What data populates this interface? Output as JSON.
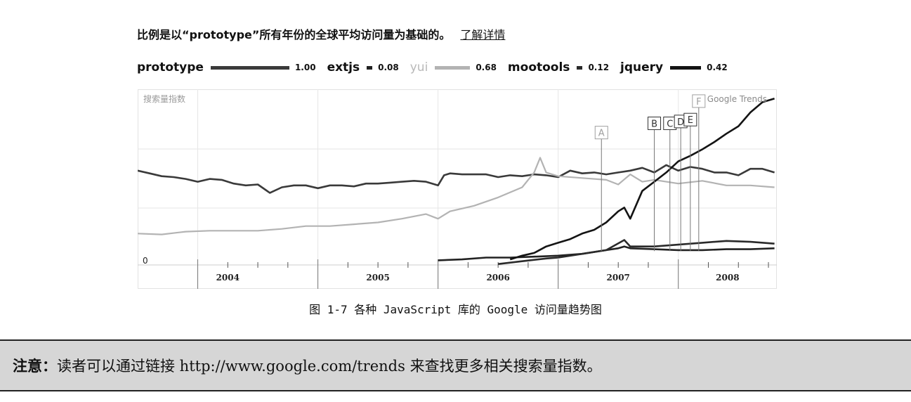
{
  "scale_note": {
    "text": "比例是以“prototype”所有年份的全球平均访问量为基础的。",
    "link": "了解详情"
  },
  "chart_data": {
    "type": "line",
    "y_label": "搜索量指数",
    "watermark": "Google Trends",
    "zero_label": "0",
    "x_range": [
      2003.5,
      2008.82
    ],
    "y_range": [
      0,
      1.9
    ],
    "years": [
      "2004",
      "2005",
      "2006",
      "2007",
      "2008"
    ],
    "series": [
      {
        "name": "prototype",
        "legend_value": "1.00",
        "color": "#3a3a3a",
        "faded": false,
        "points": [
          [
            2003.5,
            1.02
          ],
          [
            2003.6,
            0.99
          ],
          [
            2003.7,
            0.96
          ],
          [
            2003.8,
            0.95
          ],
          [
            2003.9,
            0.93
          ],
          [
            2004.0,
            0.9
          ],
          [
            2004.1,
            0.93
          ],
          [
            2004.2,
            0.92
          ],
          [
            2004.3,
            0.88
          ],
          [
            2004.4,
            0.86
          ],
          [
            2004.5,
            0.87
          ],
          [
            2004.6,
            0.78
          ],
          [
            2004.7,
            0.84
          ],
          [
            2004.8,
            0.86
          ],
          [
            2004.9,
            0.86
          ],
          [
            2005.0,
            0.83
          ],
          [
            2005.1,
            0.86
          ],
          [
            2005.2,
            0.86
          ],
          [
            2005.3,
            0.85
          ],
          [
            2005.4,
            0.88
          ],
          [
            2005.5,
            0.88
          ],
          [
            2005.6,
            0.89
          ],
          [
            2005.7,
            0.9
          ],
          [
            2005.8,
            0.91
          ],
          [
            2005.9,
            0.9
          ],
          [
            2006.0,
            0.86
          ],
          [
            2006.05,
            0.97
          ],
          [
            2006.1,
            0.99
          ],
          [
            2006.2,
            0.98
          ],
          [
            2006.3,
            0.98
          ],
          [
            2006.4,
            0.98
          ],
          [
            2006.5,
            0.95
          ],
          [
            2006.6,
            0.97
          ],
          [
            2006.7,
            0.96
          ],
          [
            2006.8,
            0.98
          ],
          [
            2006.9,
            0.97
          ],
          [
            2007.0,
            0.95
          ],
          [
            2007.1,
            1.02
          ],
          [
            2007.2,
            0.99
          ],
          [
            2007.3,
            1.0
          ],
          [
            2007.4,
            0.98
          ],
          [
            2007.5,
            1.0
          ],
          [
            2007.6,
            1.02
          ],
          [
            2007.7,
            1.05
          ],
          [
            2007.8,
            1.0
          ],
          [
            2007.9,
            1.08
          ],
          [
            2008.0,
            1.02
          ],
          [
            2008.1,
            1.06
          ],
          [
            2008.2,
            1.04
          ],
          [
            2008.3,
            1.0
          ],
          [
            2008.4,
            1.0
          ],
          [
            2008.5,
            0.97
          ],
          [
            2008.6,
            1.04
          ],
          [
            2008.7,
            1.04
          ],
          [
            2008.8,
            1.0
          ]
        ]
      },
      {
        "name": "extjs",
        "legend_value": "0.08",
        "color": "#222222",
        "faded": false,
        "points": [
          [
            2006.0,
            0.05
          ],
          [
            2006.2,
            0.06
          ],
          [
            2006.4,
            0.08
          ],
          [
            2006.6,
            0.08
          ],
          [
            2006.8,
            0.09
          ],
          [
            2007.0,
            0.1
          ],
          [
            2007.2,
            0.12
          ],
          [
            2007.4,
            0.16
          ],
          [
            2007.5,
            0.18
          ],
          [
            2007.55,
            0.2
          ],
          [
            2007.6,
            0.18
          ],
          [
            2007.8,
            0.17
          ],
          [
            2008.0,
            0.16
          ],
          [
            2008.2,
            0.16
          ],
          [
            2008.4,
            0.17
          ],
          [
            2008.6,
            0.17
          ],
          [
            2008.8,
            0.18
          ]
        ]
      },
      {
        "name": "yui",
        "legend_value": "0.68",
        "color": "#b3b3b3",
        "faded": true,
        "points": [
          [
            2003.5,
            0.34
          ],
          [
            2003.7,
            0.33
          ],
          [
            2003.9,
            0.36
          ],
          [
            2004.1,
            0.37
          ],
          [
            2004.3,
            0.37
          ],
          [
            2004.5,
            0.37
          ],
          [
            2004.7,
            0.39
          ],
          [
            2004.9,
            0.42
          ],
          [
            2005.1,
            0.42
          ],
          [
            2005.3,
            0.44
          ],
          [
            2005.5,
            0.46
          ],
          [
            2005.7,
            0.5
          ],
          [
            2005.9,
            0.55
          ],
          [
            2006.0,
            0.5
          ],
          [
            2006.1,
            0.58
          ],
          [
            2006.3,
            0.64
          ],
          [
            2006.5,
            0.73
          ],
          [
            2006.7,
            0.84
          ],
          [
            2006.8,
            1.0
          ],
          [
            2006.85,
            1.16
          ],
          [
            2006.9,
            1.0
          ],
          [
            2007.0,
            0.96
          ],
          [
            2007.2,
            0.94
          ],
          [
            2007.4,
            0.92
          ],
          [
            2007.5,
            0.87
          ],
          [
            2007.6,
            0.98
          ],
          [
            2007.7,
            0.9
          ],
          [
            2007.8,
            0.92
          ],
          [
            2008.0,
            0.88
          ],
          [
            2008.2,
            0.91
          ],
          [
            2008.4,
            0.86
          ],
          [
            2008.6,
            0.86
          ],
          [
            2008.8,
            0.84
          ]
        ]
      },
      {
        "name": "mootools",
        "legend_value": "0.12",
        "color": "#2a2a2a",
        "faded": false,
        "points": [
          [
            2006.5,
            0.01
          ],
          [
            2006.7,
            0.04
          ],
          [
            2006.9,
            0.07
          ],
          [
            2007.0,
            0.08
          ],
          [
            2007.2,
            0.12
          ],
          [
            2007.4,
            0.16
          ],
          [
            2007.55,
            0.27
          ],
          [
            2007.6,
            0.2
          ],
          [
            2007.8,
            0.2
          ],
          [
            2008.0,
            0.22
          ],
          [
            2008.2,
            0.24
          ],
          [
            2008.4,
            0.26
          ],
          [
            2008.6,
            0.25
          ],
          [
            2008.8,
            0.23
          ]
        ]
      },
      {
        "name": "jquery",
        "legend_value": "0.42",
        "color": "#141414",
        "faded": false,
        "points": [
          [
            2006.6,
            0.06
          ],
          [
            2006.7,
            0.1
          ],
          [
            2006.8,
            0.13
          ],
          [
            2006.9,
            0.2
          ],
          [
            2007.0,
            0.24
          ],
          [
            2007.1,
            0.28
          ],
          [
            2007.2,
            0.34
          ],
          [
            2007.3,
            0.38
          ],
          [
            2007.4,
            0.46
          ],
          [
            2007.5,
            0.58
          ],
          [
            2007.55,
            0.62
          ],
          [
            2007.6,
            0.5
          ],
          [
            2007.7,
            0.8
          ],
          [
            2007.8,
            0.9
          ],
          [
            2007.9,
            1.0
          ],
          [
            2008.0,
            1.12
          ],
          [
            2008.1,
            1.18
          ],
          [
            2008.2,
            1.25
          ],
          [
            2008.3,
            1.33
          ],
          [
            2008.4,
            1.42
          ],
          [
            2008.5,
            1.5
          ],
          [
            2008.6,
            1.65
          ],
          [
            2008.7,
            1.76
          ],
          [
            2008.8,
            1.8
          ]
        ]
      }
    ],
    "annotations": [
      {
        "label": "A",
        "x": 2007.36,
        "y": 1.5,
        "faded": true
      },
      {
        "label": "B",
        "x": 2007.8,
        "y": 1.6,
        "faded": false
      },
      {
        "label": "C",
        "x": 2007.93,
        "y": 1.6,
        "faded": false
      },
      {
        "label": "D",
        "x": 2008.02,
        "y": 1.62,
        "faded": false
      },
      {
        "label": "E",
        "x": 2008.1,
        "y": 1.64,
        "faded": false
      },
      {
        "label": "F",
        "x": 2008.17,
        "y": 1.84,
        "faded": true
      }
    ]
  },
  "caption": "图 1-7   各种 JavaScript 库的 Google 访问量趋势图",
  "note": {
    "label": "注意：",
    "text": "读者可以通过链接 http://www.google.com/trends 来查找更多相关搜索量指数。"
  }
}
